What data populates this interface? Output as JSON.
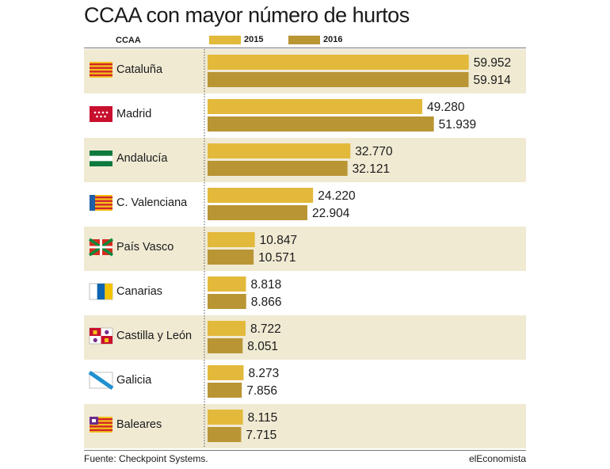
{
  "title": "CCAA con mayor número de hurtos",
  "header": {
    "region_label": "CCAA"
  },
  "footer": {
    "source": "Fuente: Checkpoint Systems.",
    "brand": "elEconomista"
  },
  "colors": {
    "series_2015": "#e3b93b",
    "series_2016": "#b99534",
    "row_shade": "#f0ead3",
    "divider": "#555555"
  },
  "chart_data": {
    "type": "bar",
    "orientation": "horizontal",
    "title": "CCAA con mayor número de hurtos",
    "categories": [
      "Cataluña",
      "Madrid",
      "Andalucía",
      "C. Valenciana",
      "País Vasco",
      "Canarias",
      "Castilla y León",
      "Galicia",
      "Baleares"
    ],
    "flags": [
      "cataluna-flag-icon",
      "madrid-flag-icon",
      "andalucia-flag-icon",
      "valencia-flag-icon",
      "pais-vasco-flag-icon",
      "canarias-flag-icon",
      "castilla-leon-flag-icon",
      "galicia-flag-icon",
      "baleares-flag-icon"
    ],
    "series": [
      {
        "name": "2015",
        "values": [
          59952,
          49280,
          32770,
          24220,
          10847,
          8818,
          8722,
          8273,
          8115
        ],
        "labels": [
          "59.952",
          "49.280",
          "32.770",
          "24.220",
          "10.847",
          "8.818",
          "8.722",
          "8.273",
          "8.115"
        ]
      },
      {
        "name": "2016",
        "values": [
          59914,
          51939,
          32121,
          22904,
          10571,
          8866,
          8051,
          7856,
          7715
        ],
        "labels": [
          "59.914",
          "51.939",
          "32.121",
          "22.904",
          "10.571",
          "8.866",
          "8.051",
          "7.856",
          "7.715"
        ]
      }
    ],
    "xlim": [
      0,
      60000
    ],
    "grid": false,
    "legend": "top"
  }
}
